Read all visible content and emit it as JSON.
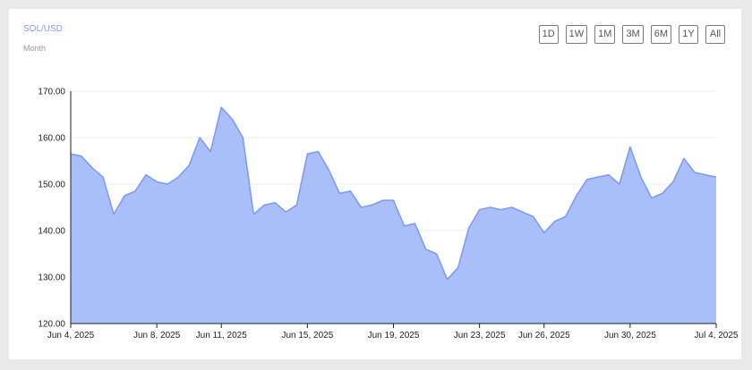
{
  "header": {
    "symbol": "SOL/USD",
    "period": "Month"
  },
  "range_buttons": [
    "1D",
    "1W",
    "1M",
    "3M",
    "6M",
    "1Y",
    "All"
  ],
  "colors": {
    "line": "#7b9cf2",
    "fill": "#aabffa",
    "grid": "#ececec",
    "axis": "#222222"
  },
  "chart_data": {
    "type": "area",
    "title": "",
    "xlabel": "",
    "ylabel": "",
    "ylim": [
      120,
      170
    ],
    "ytick_labels": [
      "120.00",
      "130.00",
      "140.00",
      "150.00",
      "160.00",
      "170.00"
    ],
    "xtick_labels": [
      "Jun 4, 2025",
      "Jun 8, 2025",
      "Jun 11, 2025",
      "Jun 15, 2025",
      "Jun 19, 2025",
      "Jun 23, 2025",
      "Jun 26, 2025",
      "Jun 30, 2025",
      "Jul 4, 2025"
    ],
    "xtick_dates": [
      "2025-06-04",
      "2025-06-08",
      "2025-06-11",
      "2025-06-15",
      "2025-06-19",
      "2025-06-23",
      "2025-06-26",
      "2025-06-30",
      "2025-07-04"
    ],
    "xlim": [
      "2025-06-04",
      "2025-07-04"
    ],
    "grid": true,
    "series": [
      {
        "dates": [
          "2025-06-04 00:00",
          "2025-06-04 12:00",
          "2025-06-05 00:00",
          "2025-06-05 12:00",
          "2025-06-06 00:00",
          "2025-06-06 12:00",
          "2025-06-07 00:00",
          "2025-06-07 12:00",
          "2025-06-08 00:00",
          "2025-06-08 12:00",
          "2025-06-09 00:00",
          "2025-06-09 12:00",
          "2025-06-10 00:00",
          "2025-06-10 12:00",
          "2025-06-11 00:00",
          "2025-06-11 12:00",
          "2025-06-12 00:00",
          "2025-06-12 12:00",
          "2025-06-13 00:00",
          "2025-06-13 12:00",
          "2025-06-14 00:00",
          "2025-06-14 12:00",
          "2025-06-15 00:00",
          "2025-06-15 12:00",
          "2025-06-16 00:00",
          "2025-06-16 12:00",
          "2025-06-17 00:00",
          "2025-06-17 12:00",
          "2025-06-18 00:00",
          "2025-06-18 12:00",
          "2025-06-19 00:00",
          "2025-06-19 12:00",
          "2025-06-20 00:00",
          "2025-06-20 12:00",
          "2025-06-21 00:00",
          "2025-06-21 12:00",
          "2025-06-22 00:00",
          "2025-06-22 12:00",
          "2025-06-23 00:00",
          "2025-06-23 12:00",
          "2025-06-24 00:00",
          "2025-06-24 12:00",
          "2025-06-25 00:00",
          "2025-06-25 12:00",
          "2025-06-26 00:00",
          "2025-06-26 12:00",
          "2025-06-27 00:00",
          "2025-06-27 12:00",
          "2025-06-28 00:00",
          "2025-06-28 12:00",
          "2025-06-29 00:00",
          "2025-06-29 12:00",
          "2025-06-30 00:00",
          "2025-06-30 12:00",
          "2025-07-01 00:00",
          "2025-07-01 12:00",
          "2025-07-02 00:00",
          "2025-07-02 12:00",
          "2025-07-03 00:00",
          "2025-07-03 12:00",
          "2025-07-04 00:00"
        ],
        "values": [
          156.5,
          156.0,
          153.5,
          151.5,
          143.5,
          147.5,
          148.5,
          152.0,
          150.5,
          150.0,
          151.5,
          154.0,
          160.0,
          157.0,
          166.5,
          164.0,
          160.0,
          143.5,
          145.5,
          146.0,
          144.0,
          145.5,
          156.5,
          157.0,
          153.0,
          148.0,
          148.5,
          145.0,
          145.5,
          146.5,
          146.5,
          141.0,
          141.5,
          136.0,
          135.0,
          129.5,
          132.0,
          140.5,
          144.5,
          145.0,
          144.5,
          145.0,
          144.0,
          143.0,
          139.5,
          142.0,
          143.0,
          147.5,
          151.0,
          151.5,
          152.0,
          150.0,
          158.0,
          151.5,
          147.0,
          148.0,
          150.5,
          155.5,
          152.5,
          152.0,
          151.5
        ]
      }
    ]
  }
}
